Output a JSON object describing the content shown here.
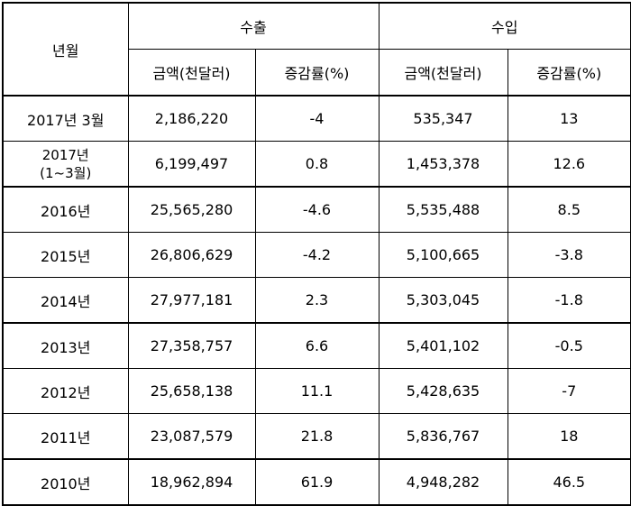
{
  "header": {
    "period_label": "년월",
    "export_label": "수출",
    "import_label": "수입",
    "amount_label": "금액(천달러)",
    "rate_label": "증감률(%)"
  },
  "rows": [
    {
      "period": "2017년 3월",
      "export_amount": "2,186,220",
      "export_rate": "-4",
      "import_amount": "535,347",
      "import_rate": "13"
    },
    {
      "period": "2017년 (1~3월)",
      "period_line1": "2017년",
      "period_line2": "(1~3월)",
      "export_amount": "6,199,497",
      "export_rate": "0.8",
      "import_amount": "1,453,378",
      "import_rate": "12.6"
    },
    {
      "period": "2016년",
      "export_amount": "25,565,280",
      "export_rate": "-4.6",
      "import_amount": "5,535,488",
      "import_rate": "8.5"
    },
    {
      "period": "2015년",
      "export_amount": "26,806,629",
      "export_rate": "-4.2",
      "import_amount": "5,100,665",
      "import_rate": "-3.8"
    },
    {
      "period": "2014년",
      "export_amount": "27,977,181",
      "export_rate": "2.3",
      "import_amount": "5,303,045",
      "import_rate": "-1.8"
    },
    {
      "period": "2013년",
      "export_amount": "27,358,757",
      "export_rate": "6.6",
      "import_amount": "5,401,102",
      "import_rate": "-0.5"
    },
    {
      "period": "2012년",
      "export_amount": "25,658,138",
      "export_rate": "11.1",
      "import_amount": "5,428,635",
      "import_rate": "-7"
    },
    {
      "period": "2011년",
      "export_amount": "23,087,579",
      "export_rate": "21.8",
      "import_amount": "5,836,767",
      "import_rate": "18"
    },
    {
      "period": "2010년",
      "export_amount": "18,962,894",
      "export_rate": "61.9",
      "import_amount": "4,948,282",
      "import_rate": "46.5"
    }
  ]
}
